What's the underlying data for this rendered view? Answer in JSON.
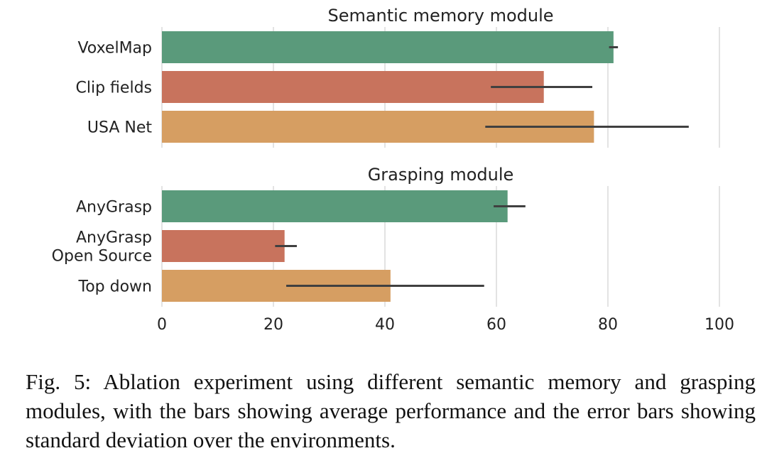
{
  "chart_data": {
    "type": "bar",
    "orientation": "horizontal",
    "xlim": [
      0,
      100
    ],
    "xticks": [
      0,
      20,
      40,
      60,
      80,
      100
    ],
    "grid": true,
    "colors": [
      "#5a9a7b",
      "#c8735d",
      "#d69e62"
    ],
    "panels": [
      {
        "title": "Semantic memory module",
        "categories": [
          "VoxelMap",
          "Clip fields",
          "USA Net"
        ],
        "values": [
          81,
          68.5,
          77.5
        ],
        "error_low": [
          80.2,
          59,
          58
        ],
        "error_high": [
          81.8,
          77.2,
          94.5
        ]
      },
      {
        "title": "Grasping module",
        "categories": [
          "AnyGrasp",
          "AnyGrasp\nOpen Source",
          "Top down"
        ],
        "values": [
          62,
          22,
          41
        ],
        "error_low": [
          59.5,
          20.3,
          22.3
        ],
        "error_high": [
          65.2,
          24.2,
          57.8
        ]
      }
    ]
  },
  "caption": "Fig. 5: Ablation experiment using different semantic memory and grasping modules, with the bars showing average performance and the error bars showing standard deviation over the environments."
}
